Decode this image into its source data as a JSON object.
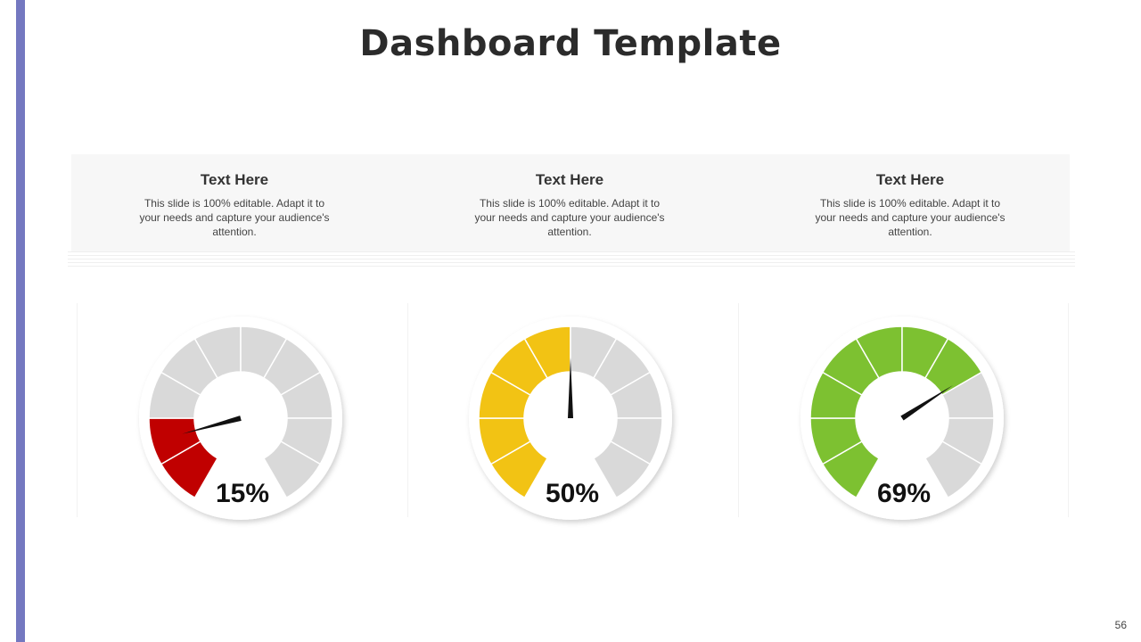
{
  "title": "Dashboard Template",
  "page_number": "56",
  "colors": {
    "accent_bar": "#7478c0",
    "inactive_segment": "#d9d9d9"
  },
  "columns": [
    {
      "heading": "Text Here",
      "body": "This slide is 100% editable. Adapt it to your needs and capture your audience's attention."
    },
    {
      "heading": "Text Here",
      "body": "This slide is 100% editable. Adapt it to your needs and capture your audience's attention."
    },
    {
      "heading": "Text Here",
      "body": "This slide is 100% editable. Adapt it to your needs and capture your audience's attention."
    }
  ],
  "gauges": [
    {
      "value": 15,
      "label": "15%",
      "color": "#c00000"
    },
    {
      "value": 50,
      "label": "50%",
      "color": "#f2c314"
    },
    {
      "value": 69,
      "label": "69%",
      "color": "#7dc131"
    }
  ]
}
